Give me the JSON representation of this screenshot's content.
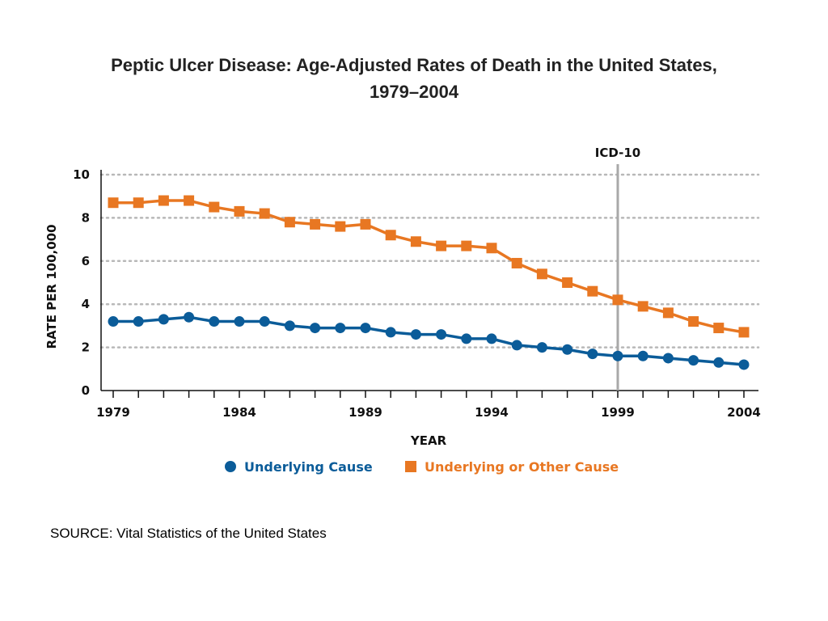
{
  "title_line1": "Peptic Ulcer Disease:  Age-Adjusted Rates of Death in the United States,",
  "title_line2": "1979–2004",
  "source": "SOURCE:  Vital Statistics of the United States",
  "chart_data": {
    "type": "line",
    "xlabel": "YEAR",
    "ylabel": "RATE PER 100,000",
    "xlim": [
      1979,
      2004
    ],
    "ylim": [
      0,
      10
    ],
    "x_ticks": [
      1979,
      1984,
      1989,
      1994,
      1999,
      2004
    ],
    "y_ticks": [
      0,
      2,
      4,
      6,
      8,
      10
    ],
    "grid": "horizontal dotted",
    "legend_position": "bottom",
    "annotation": {
      "label": "ICD-10",
      "x": 1999
    },
    "x": [
      1979,
      1980,
      1981,
      1982,
      1983,
      1984,
      1985,
      1986,
      1987,
      1988,
      1989,
      1990,
      1991,
      1992,
      1993,
      1994,
      1995,
      1996,
      1997,
      1998,
      1999,
      2000,
      2001,
      2002,
      2003,
      2004
    ],
    "series": [
      {
        "name": "Underlying Cause",
        "marker": "circle",
        "color": "#0b5c99",
        "values": [
          3.2,
          3.2,
          3.3,
          3.4,
          3.2,
          3.2,
          3.2,
          3.0,
          2.9,
          2.9,
          2.9,
          2.7,
          2.6,
          2.6,
          2.4,
          2.4,
          2.1,
          2.0,
          1.9,
          1.7,
          1.6,
          1.6,
          1.5,
          1.4,
          1.3,
          1.2
        ]
      },
      {
        "name": "Underlying or Other Cause",
        "marker": "square",
        "color": "#e87722",
        "values": [
          8.7,
          8.7,
          8.8,
          8.8,
          8.5,
          8.3,
          8.2,
          7.8,
          7.7,
          7.6,
          7.7,
          7.2,
          6.9,
          6.7,
          6.7,
          6.6,
          5.9,
          5.4,
          5.0,
          4.6,
          4.2,
          3.9,
          3.6,
          3.2,
          2.9,
          2.7
        ]
      }
    ]
  }
}
